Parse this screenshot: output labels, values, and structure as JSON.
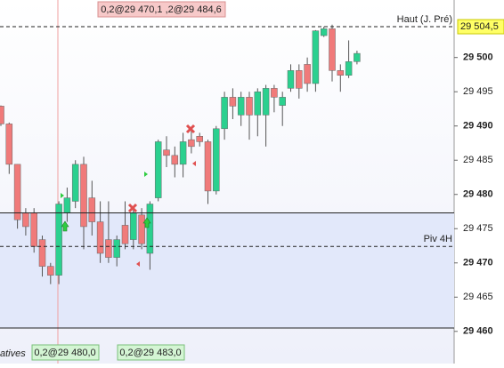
{
  "chart_data": {
    "type": "candlestick",
    "categories": [
      null,
      null,
      null,
      null,
      null,
      null,
      null,
      null,
      null,
      null,
      null,
      null,
      null,
      null,
      null,
      null,
      null,
      null,
      null,
      null,
      null,
      null,
      null,
      null,
      null,
      null,
      null,
      null,
      null,
      null,
      null,
      null,
      null,
      null,
      null,
      null,
      null,
      null,
      null,
      null,
      null,
      null,
      null,
      null
    ],
    "open": [
      29492.9,
      29490.3,
      29484.4,
      29477.3,
      29477.3,
      29473.4,
      29469.5,
      29468.2,
      29477.3,
      29479.0,
      29484.4,
      29479.5,
      29476.0,
      29473.4,
      29470.8,
      29475.5,
      29473.4,
      29477.0,
      29471.4,
      29479.5,
      29486.5,
      29485.7,
      29484.4,
      29488.0,
      29488.5,
      29487.7,
      29480.5,
      29489.6,
      29494.2,
      29491.6,
      29494.2,
      29491.6,
      29491.6,
      29495.5,
      29493.0,
      29495.5,
      29498.1,
      29499.0,
      29496.2,
      29503.2,
      29504.2,
      29498.1,
      29497.4,
      29499.4
    ],
    "high": [
      29493.0,
      29490.5,
      29484.4,
      29478.0,
      29478.0,
      29474.0,
      29470.0,
      29479.0,
      29481.0,
      29485.0,
      29485.5,
      29482.0,
      29479.0,
      29479.0,
      29474.0,
      29479.0,
      29478.0,
      29478.0,
      29479.0,
      29488.0,
      29488.5,
      29487.0,
      29489.0,
      29489.5,
      29489.0,
      29488.0,
      29490.0,
      29495.0,
      29495.5,
      29495.0,
      29495.0,
      29495.5,
      29496.0,
      29496.0,
      29495.0,
      29499.0,
      29499.0,
      29500.0,
      29504.0,
      29504.5,
      29504.8,
      29499.0,
      29502.5,
      29501.0
    ],
    "low": [
      29490.0,
      29483.0,
      29475.0,
      29474.0,
      29471.5,
      29468.0,
      29466.9,
      29466.9,
      29476.0,
      29478.0,
      29472.0,
      29474.0,
      29470.0,
      29470.0,
      29469.5,
      29472.0,
      29472.0,
      29472.0,
      29469.0,
      29479.0,
      29484.0,
      29482.5,
      29482.5,
      29486.0,
      29487.0,
      29478.6,
      29480.0,
      29488.0,
      29491.0,
      29490.0,
      29488.0,
      29488.5,
      29487.0,
      29492.0,
      29490.0,
      29495.0,
      29494.0,
      29495.0,
      29495.0,
      29503.0,
      29496.5,
      29495.0,
      29497.0,
      29499.0
    ],
    "close": [
      29490.3,
      29484.4,
      29476.3,
      29475.3,
      29472.4,
      29469.5,
      29468.2,
      29478.6,
      29479.5,
      29484.4,
      29475.3,
      29476.0,
      29471.4,
      29470.8,
      29473.4,
      29472.8,
      29477.3,
      29472.8,
      29478.6,
      29487.7,
      29485.7,
      29484.4,
      29487.7,
      29487.0,
      29487.7,
      29480.5,
      29489.6,
      29494.2,
      29492.9,
      29494.2,
      29491.6,
      29495.0,
      29495.5,
      29494.2,
      29494.2,
      29498.1,
      29495.5,
      29496.2,
      29503.9,
      29504.2,
      29498.1,
      29497.4,
      29499.4,
      29500.6
    ],
    "up_color": "#2bd08f",
    "down_color": "#f07a7a",
    "ylim": [
      29455.3,
      29508.4
    ],
    "yticks": [
      {
        "value": 29460,
        "label": "29 460"
      },
      {
        "value": 29465,
        "label": "29 465"
      },
      {
        "value": 29470,
        "label": "29 470"
      },
      {
        "value": 29475,
        "label": "29 475"
      },
      {
        "value": 29480,
        "label": "29 480"
      },
      {
        "value": 29485,
        "label": "29 485"
      },
      {
        "value": 29490,
        "label": "29 490"
      },
      {
        "value": 29495,
        "label": "29 495"
      },
      {
        "value": 29500,
        "label": "29 500"
      }
    ],
    "lines": [
      {
        "value": 29504.5,
        "label": "Haut (J. Pré)",
        "value_label": "29 504,5",
        "style": "dashed"
      },
      {
        "value": 29477.3,
        "style": "solid"
      },
      {
        "value": 29472.4,
        "label": "Piv 4H",
        "style": "dashed"
      },
      {
        "value": 29460.5,
        "style": "solid"
      }
    ],
    "annotations": {
      "top": "0,2@29 470,1 ,2@29 484,6",
      "bottom": [
        "0,2@29 480,0",
        "0,2@29 483,0"
      ],
      "left": "atives"
    }
  }
}
